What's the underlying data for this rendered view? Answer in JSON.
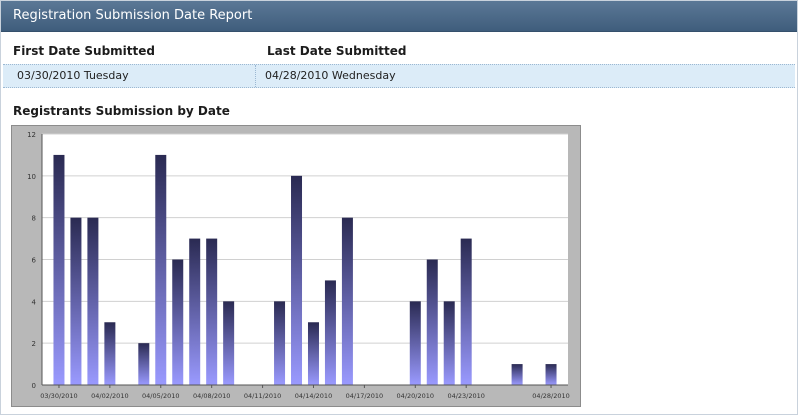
{
  "window": {
    "title": "Registration Submission Date Report"
  },
  "summary": {
    "headers": {
      "first": "First Date Submitted",
      "last": "Last Date Submitted"
    },
    "values": {
      "first": "03/30/2010 Tuesday",
      "last": "04/28/2010 Wednesday"
    }
  },
  "chart_title": "Registrants Submission by Date",
  "chart_data": {
    "type": "bar",
    "title": "Registrants Submission by Date",
    "xlabel": "",
    "ylabel": "",
    "ylim": [
      0,
      12
    ],
    "yticks": [
      0,
      2,
      4,
      6,
      8,
      10,
      12
    ],
    "grid": true,
    "x_range": [
      "03/29/2010",
      "04/29/2010"
    ],
    "xtick_labels": [
      "03/30/2010",
      "04/02/2010",
      "04/05/2010",
      "04/08/2010",
      "04/11/2010",
      "04/14/2010",
      "04/17/2010",
      "04/20/2010",
      "04/23/2010",
      "04/28/2010"
    ],
    "categories": [
      "03/30/2010",
      "03/31/2010",
      "04/01/2010",
      "04/02/2010",
      "04/04/2010",
      "04/05/2010",
      "04/06/2010",
      "04/07/2010",
      "04/08/2010",
      "04/09/2010",
      "04/12/2010",
      "04/13/2010",
      "04/14/2010",
      "04/15/2010",
      "04/16/2010",
      "04/20/2010",
      "04/21/2010",
      "04/22/2010",
      "04/23/2010",
      "04/26/2010",
      "04/28/2010"
    ],
    "values": [
      11,
      8,
      8,
      3,
      2,
      11,
      6,
      7,
      7,
      4,
      4,
      10,
      3,
      5,
      8,
      4,
      6,
      4,
      7,
      1,
      1
    ],
    "colors": {
      "bar_top": "#2a2a52",
      "bar_bottom": "#9a9aff",
      "plot_bg": "#ffffff",
      "frame": "#b8b8b8"
    }
  }
}
